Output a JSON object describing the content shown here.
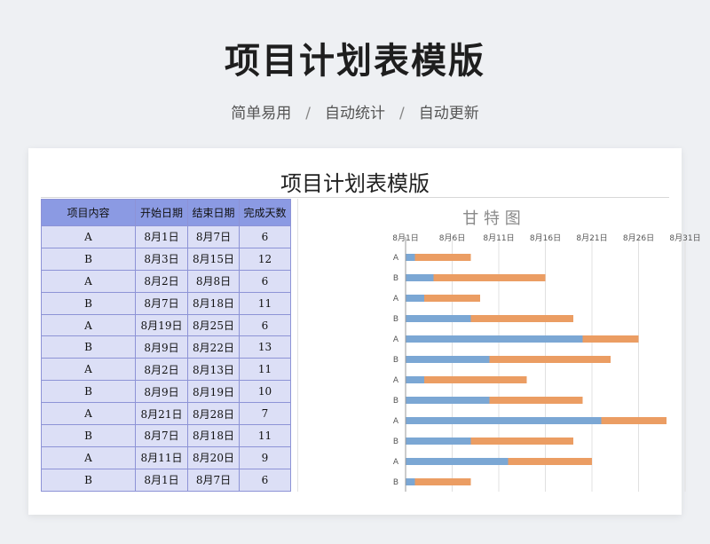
{
  "page": {
    "title": "项目计划表模版",
    "subtitle": [
      "简单易用",
      "自动统计",
      "自动更新"
    ],
    "separator": "/"
  },
  "sheet": {
    "title": "项目计划表模版",
    "headers": [
      "项目内容",
      "开始日期",
      "结束日期",
      "完成天数"
    ],
    "rows": [
      [
        "A",
        "8月1日",
        "8月7日",
        "6"
      ],
      [
        "B",
        "8月3日",
        "8月15日",
        "12"
      ],
      [
        "A",
        "8月2日",
        "8月8日",
        "6"
      ],
      [
        "B",
        "8月7日",
        "8月18日",
        "11"
      ],
      [
        "A",
        "8月19日",
        "8月25日",
        "6"
      ],
      [
        "B",
        "8月9日",
        "8月22日",
        "13"
      ],
      [
        "A",
        "8月2日",
        "8月13日",
        "11"
      ],
      [
        "B",
        "8月9日",
        "8月19日",
        "10"
      ],
      [
        "A",
        "8月21日",
        "8月28日",
        "7"
      ],
      [
        "B",
        "8月7日",
        "8月18日",
        "11"
      ],
      [
        "A",
        "8月11日",
        "8月20日",
        "9"
      ],
      [
        "B",
        "8月1日",
        "8月7日",
        "6"
      ]
    ]
  },
  "chart_data": {
    "type": "bar",
    "orientation": "horizontal-stacked",
    "title": "甘 特 图",
    "categories": [
      "A",
      "B",
      "A",
      "B",
      "A",
      "B",
      "A",
      "B",
      "A",
      "B",
      "A",
      "B"
    ],
    "x_tick_labels": [
      "8月1日",
      "8月6日",
      "8月11日",
      "8月16日",
      "8月21日",
      "8月26日",
      "8月31日"
    ],
    "xlim": [
      1,
      31
    ],
    "x_tick_step": 5,
    "series": [
      {
        "color": "#7ba7d4",
        "values": [
          1,
          3,
          2,
          7,
          19,
          9,
          2,
          9,
          21,
          7,
          11,
          1
        ]
      },
      {
        "color": "#eb9d63",
        "values": [
          6,
          12,
          6,
          11,
          6,
          13,
          11,
          10,
          7,
          11,
          9,
          6
        ]
      }
    ],
    "grid": true,
    "legend": "none"
  }
}
